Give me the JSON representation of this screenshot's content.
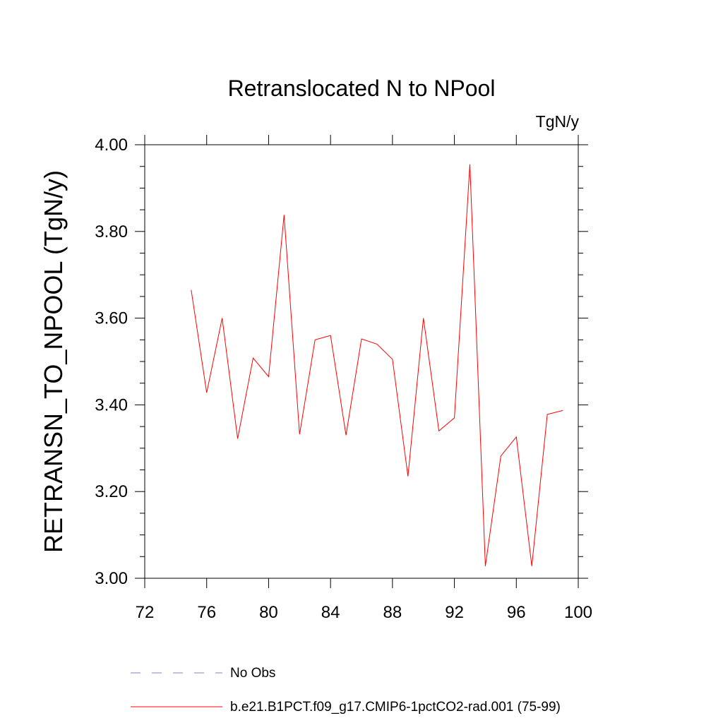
{
  "chart_data": {
    "type": "line",
    "title": "Retranslocated N to NPool",
    "units": "TgN/y",
    "ylabel": "RETRANSN_TO_NPOOL  (TgN/y)",
    "xlabel": "",
    "xlim": [
      72,
      100
    ],
    "ylim": [
      3.0,
      4.0
    ],
    "xticks": [
      "72",
      "76",
      "80",
      "84",
      "88",
      "92",
      "96",
      "100"
    ],
    "yticks": [
      "3.00",
      "3.20",
      "3.40",
      "3.60",
      "3.80",
      "4.00"
    ],
    "grid": false,
    "legend_position": "bottom",
    "series": [
      {
        "name": "No Obs",
        "color": "#8080c0",
        "style": "dashed",
        "x": [],
        "y": []
      },
      {
        "name": "b.e21.B1PCT.f09_g17.CMIP6-1pctCO2-rad.001 (75-99)",
        "color": "#ff0000",
        "style": "solid",
        "x": [
          75,
          76,
          77,
          78,
          79,
          80,
          81,
          82,
          83,
          84,
          85,
          86,
          87,
          88,
          89,
          90,
          91,
          92,
          93,
          94,
          95,
          96,
          97,
          98,
          99
        ],
        "y": [
          3.665,
          3.428,
          3.6,
          3.322,
          3.508,
          3.465,
          3.838,
          3.332,
          3.55,
          3.56,
          3.33,
          3.552,
          3.54,
          3.505,
          3.235,
          3.6,
          3.34,
          3.37,
          3.955,
          3.028,
          3.282,
          3.326,
          3.028,
          3.378,
          3.387
        ]
      }
    ]
  }
}
